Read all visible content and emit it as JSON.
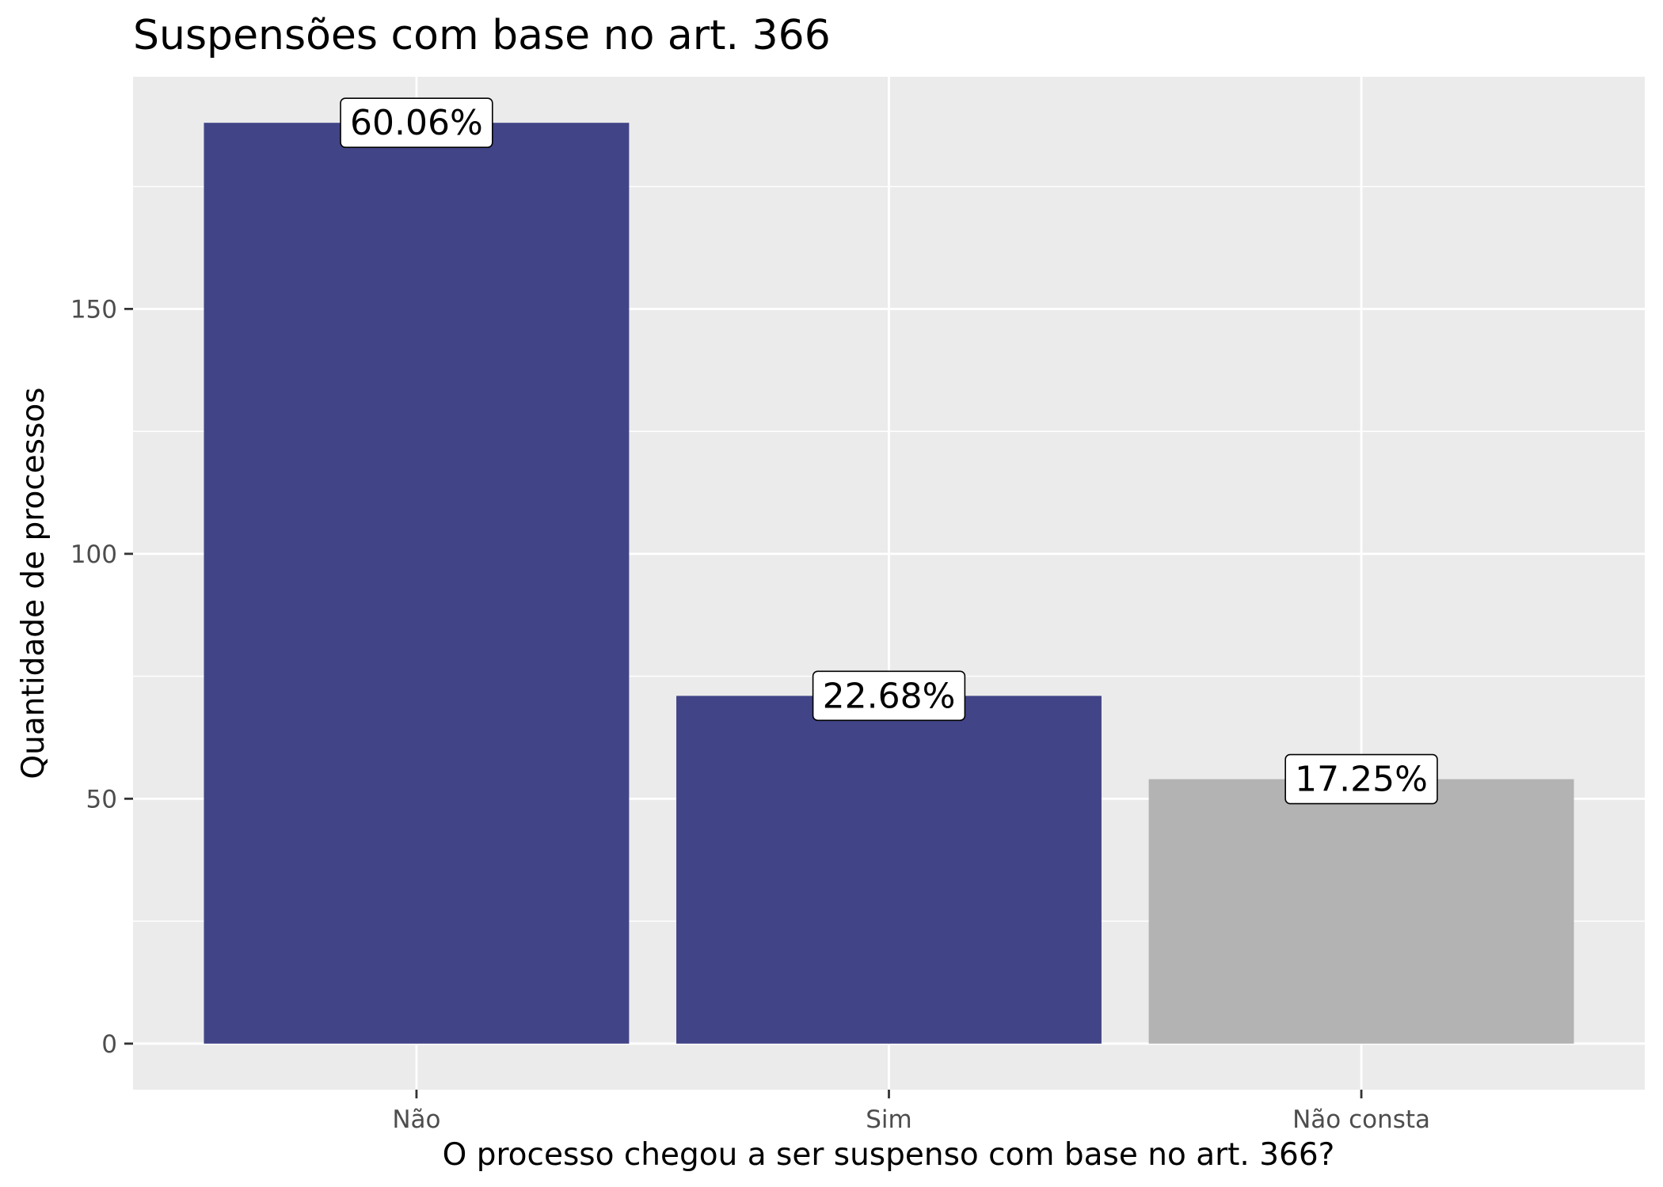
{
  "chart_data": {
    "type": "bar",
    "title": "Suspensões com base no art. 366",
    "xlabel": "O processo chegou a ser suspenso com base no art. 366?",
    "ylabel": "Quantidade de processos",
    "categories": [
      "Não",
      "Sim",
      "Não consta"
    ],
    "values": [
      188,
      71,
      54
    ],
    "data_labels": [
      "60.06%",
      "22.68%",
      "17.25%"
    ],
    "bar_colors": [
      "#414487",
      "#414487",
      "#b3b3b3"
    ],
    "ylim": [
      -9.4,
      197.4
    ],
    "yticks": [
      0,
      50,
      100,
      150
    ],
    "ytick_labels": [
      "0",
      "50",
      "100",
      "150"
    ],
    "grid": true,
    "legend": "none",
    "panel_color": "#ebebeb",
    "grid_color": "#ffffff"
  }
}
